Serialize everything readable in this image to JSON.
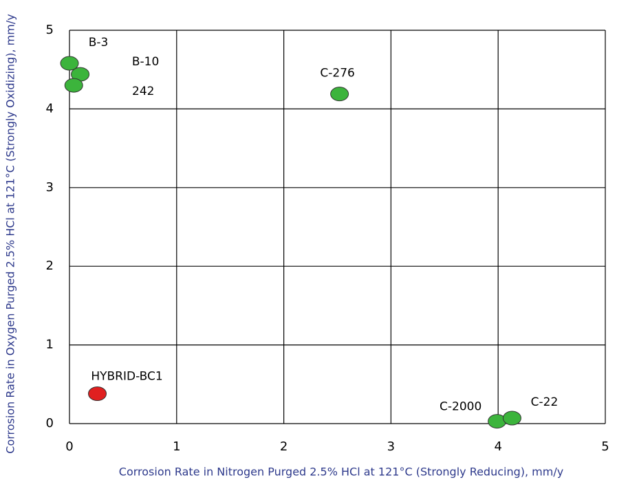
{
  "chart_data": {
    "type": "scatter",
    "x_label": "Corrosion Rate in Nitrogen Purged 2.5% HCl at 121°C (Strongly Reducing), mm/y",
    "y_label": "Corrosion Rate in Oxygen Purged 2.5% HCl at 121°C (Strongly Oxidizing), mm/y",
    "xlim": [
      0,
      5
    ],
    "ylim": [
      0,
      5
    ],
    "xticks": [
      0,
      1,
      2,
      3,
      4,
      5
    ],
    "yticks": [
      0,
      1,
      2,
      3,
      4,
      5
    ],
    "grid": true,
    "points": [
      {
        "label": "B-3",
        "x": 0,
        "y": 4.58,
        "color": "#3cb43c"
      },
      {
        "label": "B-10",
        "x": 0.1,
        "y": 4.44,
        "color": "#3cb43c"
      },
      {
        "label": "242",
        "x": 0.04,
        "y": 4.3,
        "color": "#3cb43c"
      },
      {
        "label": "C-276",
        "x": 2.52,
        "y": 4.19,
        "color": "#3cb43c"
      },
      {
        "label": "HYBRID-BC1",
        "x": 0.26,
        "y": 0.38,
        "color": "#e02020"
      },
      {
        "label": "C-2000",
        "x": 3.99,
        "y": 0.03,
        "color": "#3cb43c"
      },
      {
        "label": "C-22",
        "x": 4.13,
        "y": 0.07,
        "color": "#3cb43c"
      }
    ]
  }
}
